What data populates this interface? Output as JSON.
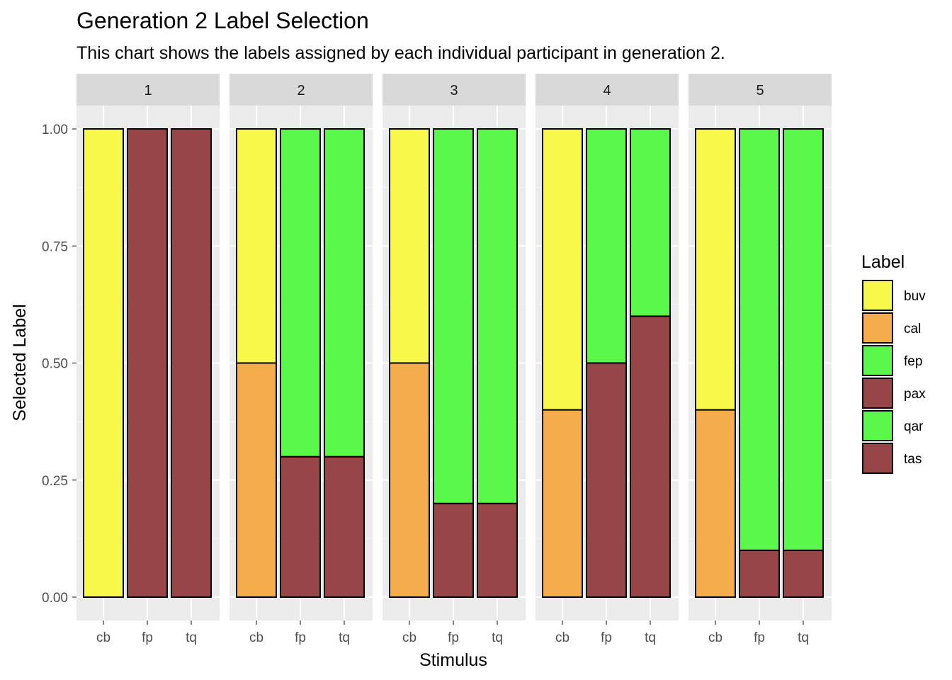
{
  "chart_data": {
    "type": "bar",
    "title": "Generation 2 Label Selection",
    "subtitle": "This chart shows the labels assigned by each individual participant in generation 2.",
    "xlabel": "Stimulus",
    "ylabel": "Selected Label",
    "ylim": [
      0,
      1
    ],
    "yticks": [
      "0.00",
      "0.25",
      "0.50",
      "0.75",
      "1.00"
    ],
    "categories": [
      "cb",
      "fp",
      "tq"
    ],
    "stacking": "stacked-proportion",
    "legend": {
      "title": "Label",
      "position": "right",
      "entries": [
        {
          "label": "buv",
          "color": "#F8F84A"
        },
        {
          "label": "cal",
          "color": "#F5AC4A"
        },
        {
          "label": "fep",
          "color": "#5AF84A"
        },
        {
          "label": "pax",
          "color": "#974546"
        },
        {
          "label": "qar",
          "color": "#5AF84A"
        },
        {
          "label": "tas",
          "color": "#974546"
        }
      ]
    },
    "facets": [
      {
        "label": "1",
        "bars": [
          {
            "category": "cb",
            "segments": [
              {
                "label": "buv",
                "value": 1.0
              }
            ]
          },
          {
            "category": "fp",
            "segments": [
              {
                "label": "pax",
                "value": 1.0
              }
            ]
          },
          {
            "category": "tq",
            "segments": [
              {
                "label": "tas",
                "value": 1.0
              }
            ]
          }
        ]
      },
      {
        "label": "2",
        "bars": [
          {
            "category": "cb",
            "segments": [
              {
                "label": "cal",
                "value": 0.5
              },
              {
                "label": "buv",
                "value": 0.5
              }
            ]
          },
          {
            "category": "fp",
            "segments": [
              {
                "label": "pax",
                "value": 0.3
              },
              {
                "label": "fep",
                "value": 0.7
              }
            ]
          },
          {
            "category": "tq",
            "segments": [
              {
                "label": "tas",
                "value": 0.3
              },
              {
                "label": "qar",
                "value": 0.7
              }
            ]
          }
        ]
      },
      {
        "label": "3",
        "bars": [
          {
            "category": "cb",
            "segments": [
              {
                "label": "cal",
                "value": 0.5
              },
              {
                "label": "buv",
                "value": 0.5
              }
            ]
          },
          {
            "category": "fp",
            "segments": [
              {
                "label": "pax",
                "value": 0.2
              },
              {
                "label": "fep",
                "value": 0.8
              }
            ]
          },
          {
            "category": "tq",
            "segments": [
              {
                "label": "tas",
                "value": 0.2
              },
              {
                "label": "qar",
                "value": 0.8
              }
            ]
          }
        ]
      },
      {
        "label": "4",
        "bars": [
          {
            "category": "cb",
            "segments": [
              {
                "label": "cal",
                "value": 0.4
              },
              {
                "label": "buv",
                "value": 0.6
              }
            ]
          },
          {
            "category": "fp",
            "segments": [
              {
                "label": "pax",
                "value": 0.5
              },
              {
                "label": "fep",
                "value": 0.5
              }
            ]
          },
          {
            "category": "tq",
            "segments": [
              {
                "label": "tas",
                "value": 0.6
              },
              {
                "label": "qar",
                "value": 0.4
              }
            ]
          }
        ]
      },
      {
        "label": "5",
        "bars": [
          {
            "category": "cb",
            "segments": [
              {
                "label": "cal",
                "value": 0.4
              },
              {
                "label": "buv",
                "value": 0.6
              }
            ]
          },
          {
            "category": "fp",
            "segments": [
              {
                "label": "pax",
                "value": 0.1
              },
              {
                "label": "fep",
                "value": 0.9
              }
            ]
          },
          {
            "category": "tq",
            "segments": [
              {
                "label": "tas",
                "value": 0.1
              },
              {
                "label": "qar",
                "value": 0.9
              }
            ]
          }
        ]
      }
    ],
    "panel_background": "#EBEBEB",
    "strip_background": "#D9D9D9",
    "grid": true
  }
}
